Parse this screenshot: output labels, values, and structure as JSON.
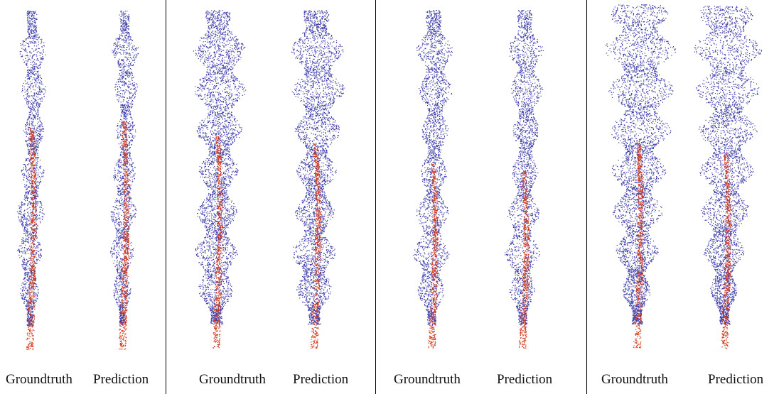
{
  "figure": {
    "panels": [
      {
        "labels": [
          "Groundtruth",
          "Prediction"
        ]
      },
      {
        "labels": [
          "Groundtruth",
          "Prediction"
        ]
      },
      {
        "labels": [
          "Groundtruth",
          "Prediction"
        ]
      },
      {
        "labels": [
          "Groundtruth",
          "Prediction"
        ]
      }
    ],
    "colors": {
      "leaf_points": "#3b3ba8",
      "stem_points": "#d23a1e",
      "background": "#ffffff",
      "divider": "#000000"
    }
  }
}
